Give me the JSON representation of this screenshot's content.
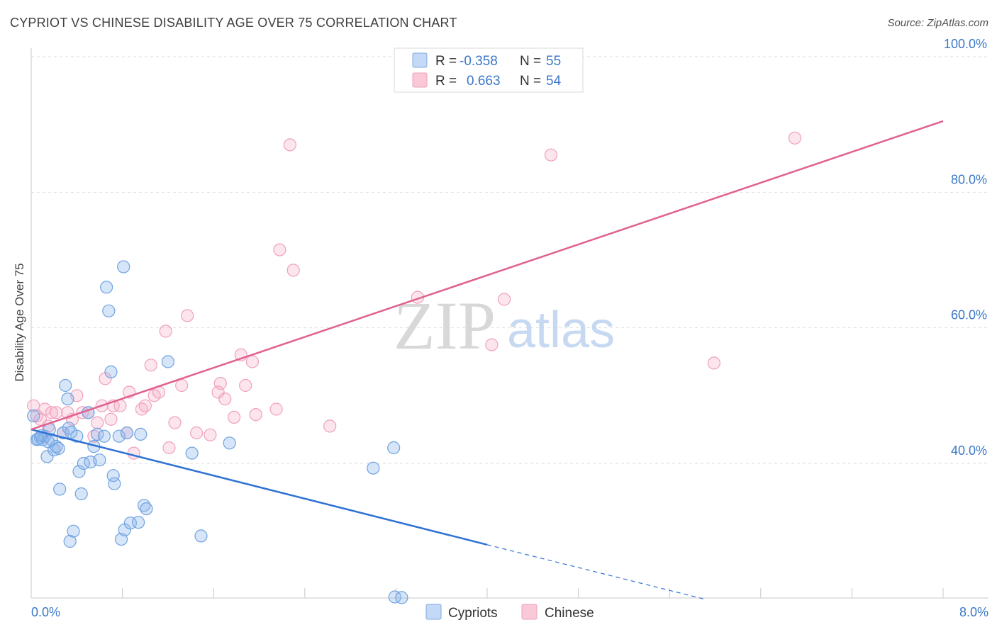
{
  "header": {
    "title": "CYPRIOT VS CHINESE DISABILITY AGE OVER 75 CORRELATION CHART",
    "source": "Source: ZipAtlas.com"
  },
  "watermark": {
    "zip": "ZIP",
    "atlas": "atlas"
  },
  "colors": {
    "blue": "#6fa3e0",
    "blue_line": "#2f72d4",
    "pink": "#f0a0bb",
    "pink_line": "#e06090",
    "axis_text": "#3a78c8"
  },
  "chart_data": {
    "type": "scatter",
    "title": "CYPRIOT VS CHINESE DISABILITY AGE OVER 75 CORRELATION CHART",
    "xlabel": "",
    "ylabel": "Disability Age Over 75",
    "xlim": [
      0.0,
      8.0
    ],
    "ylim": [
      20.0,
      102.0
    ],
    "x_tick_labels": [
      "0.0%",
      "8.0%"
    ],
    "y_ticks": [
      40,
      60,
      80,
      100
    ],
    "y_tick_labels": [
      "40.0%",
      "60.0%",
      "80.0%",
      "100.0%"
    ],
    "legend": {
      "entries": [
        {
          "r_label": "R =",
          "r_value": "-0.358",
          "n_label": "N =",
          "n_value": "55"
        },
        {
          "r_label": "R =",
          "r_value": "0.663",
          "n_label": "N =",
          "n_value": "54"
        }
      ]
    },
    "series": [
      {
        "name": "Cypriots",
        "color": "#6fa3e0",
        "trend": {
          "x": [
            0.0,
            4.0
          ],
          "y": [
            45.0,
            28.0
          ],
          "dashed_to": [
            5.9,
            20.0
          ]
        },
        "points": [
          [
            0.02,
            47.0
          ],
          [
            0.05,
            43.5
          ],
          [
            0.08,
            43.8
          ],
          [
            0.1,
            43.5
          ],
          [
            0.12,
            44.0
          ],
          [
            0.14,
            41.0
          ],
          [
            0.16,
            45.0
          ],
          [
            0.18,
            43.5
          ],
          [
            0.2,
            42.0
          ],
          [
            0.22,
            42.5
          ],
          [
            0.24,
            42.2
          ],
          [
            0.25,
            36.2
          ],
          [
            0.28,
            44.5
          ],
          [
            0.3,
            51.5
          ],
          [
            0.32,
            49.5
          ],
          [
            0.33,
            45.2
          ],
          [
            0.34,
            28.5
          ],
          [
            0.37,
            30.0
          ],
          [
            0.4,
            44.0
          ],
          [
            0.42,
            38.8
          ],
          [
            0.44,
            35.5
          ],
          [
            0.46,
            40.0
          ],
          [
            0.5,
            47.5
          ],
          [
            0.52,
            40.2
          ],
          [
            0.55,
            42.5
          ],
          [
            0.58,
            44.3
          ],
          [
            0.6,
            40.5
          ],
          [
            0.64,
            44.0
          ],
          [
            0.66,
            66.0
          ],
          [
            0.68,
            62.5
          ],
          [
            0.7,
            53.5
          ],
          [
            0.72,
            38.2
          ],
          [
            0.73,
            37.0
          ],
          [
            0.77,
            44.0
          ],
          [
            0.79,
            28.8
          ],
          [
            0.81,
            69.0
          ],
          [
            0.82,
            30.2
          ],
          [
            0.84,
            44.5
          ],
          [
            0.87,
            31.2
          ],
          [
            0.94,
            31.3
          ],
          [
            0.96,
            44.3
          ],
          [
            0.99,
            33.8
          ],
          [
            1.01,
            33.3
          ],
          [
            1.2,
            55.0
          ],
          [
            1.41,
            41.5
          ],
          [
            1.49,
            29.3
          ],
          [
            1.74,
            43.0
          ],
          [
            3.0,
            39.3
          ],
          [
            3.18,
            42.3
          ],
          [
            3.19,
            20.3
          ],
          [
            3.25,
            20.2
          ],
          [
            0.06,
            43.6
          ],
          [
            0.09,
            44.1
          ],
          [
            0.15,
            43.2
          ],
          [
            0.35,
            44.6
          ]
        ]
      },
      {
        "name": "Chinese",
        "color": "#f0a0bb",
        "trend": {
          "x": [
            0.0,
            8.0
          ],
          "y": [
            45.0,
            90.5
          ]
        },
        "points": [
          [
            0.02,
            48.5
          ],
          [
            0.05,
            47.0
          ],
          [
            0.08,
            46.5
          ],
          [
            0.12,
            48.0
          ],
          [
            0.15,
            45.5
          ],
          [
            0.18,
            47.5
          ],
          [
            0.22,
            47.5
          ],
          [
            0.28,
            44.5
          ],
          [
            0.32,
            47.5
          ],
          [
            0.36,
            46.5
          ],
          [
            0.4,
            50.0
          ],
          [
            0.45,
            47.5
          ],
          [
            0.5,
            47.5
          ],
          [
            0.55,
            44.0
          ],
          [
            0.58,
            46.0
          ],
          [
            0.62,
            48.5
          ],
          [
            0.65,
            52.5
          ],
          [
            0.7,
            46.5
          ],
          [
            0.72,
            48.5
          ],
          [
            0.78,
            48.5
          ],
          [
            0.84,
            44.5
          ],
          [
            0.86,
            50.5
          ],
          [
            0.9,
            41.5
          ],
          [
            0.97,
            48.0
          ],
          [
            1.0,
            48.5
          ],
          [
            1.05,
            54.5
          ],
          [
            1.08,
            50.0
          ],
          [
            1.12,
            50.5
          ],
          [
            1.18,
            59.5
          ],
          [
            1.21,
            42.3
          ],
          [
            1.26,
            46.0
          ],
          [
            1.32,
            51.5
          ],
          [
            1.37,
            61.8
          ],
          [
            1.45,
            44.5
          ],
          [
            1.57,
            44.2
          ],
          [
            1.64,
            50.5
          ],
          [
            1.66,
            51.8
          ],
          [
            1.7,
            49.5
          ],
          [
            1.78,
            46.8
          ],
          [
            1.84,
            56.0
          ],
          [
            1.88,
            51.5
          ],
          [
            1.94,
            55.0
          ],
          [
            1.97,
            47.2
          ],
          [
            2.15,
            48.0
          ],
          [
            2.18,
            71.5
          ],
          [
            2.27,
            87.0
          ],
          [
            2.3,
            68.5
          ],
          [
            2.62,
            45.5
          ],
          [
            3.39,
            64.5
          ],
          [
            4.04,
            57.5
          ],
          [
            4.15,
            64.2
          ],
          [
            4.56,
            85.5
          ],
          [
            5.99,
            54.8
          ],
          [
            6.7,
            88.0
          ]
        ]
      }
    ]
  }
}
